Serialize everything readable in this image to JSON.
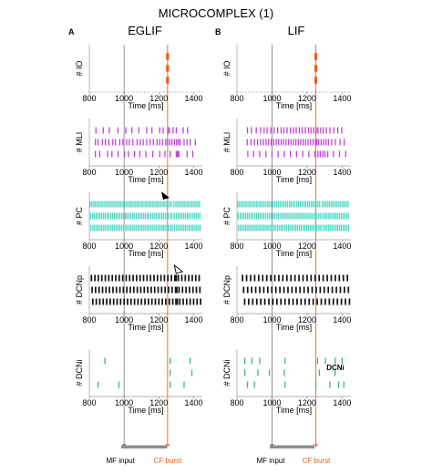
{
  "figure": {
    "title": "MICROCOMPLEX (1)",
    "mf_label": "MF input",
    "cf_label": "CF burst",
    "dcni_note": "DCNi"
  },
  "colors": {
    "IO": "#e8601c",
    "MLI": "#c040d8",
    "PC": "#4fd6c4",
    "DCNp": "#111111",
    "DCNi": "#3cb371",
    "cf_line": "#f07a50",
    "mf_line": "#7a7a7a",
    "stim_bar": "#8c8c8c"
  },
  "chart_data": [
    {
      "type": "scatter",
      "panel_letter": "A",
      "column_title": "EGLIF",
      "xlim": [
        800,
        1450
      ],
      "xticks": [
        800,
        1000,
        1200,
        1400
      ],
      "mf_onset": 1000,
      "cf_time": 1250,
      "rows": [
        {
          "population": "IO",
          "ylabel": "# IO",
          "xlabel": "Time [ms]",
          "trains": [
            [
              1250
            ],
            [
              1250
            ],
            [
              1250
            ]
          ]
        },
        {
          "population": "MLI",
          "ylabel": "# MLI",
          "xlabel": "Time [ms]",
          "trains": [
            [
              838,
              880,
              915,
              965,
              1010,
              1045,
              1085,
              1130,
              1160,
              1205,
              1225,
              1252,
              1260,
              1282,
              1300,
              1340,
              1365
            ],
            [
              835,
              850,
              875,
              893,
              912,
              935,
              950,
              975,
              993,
              1015,
              1030,
              1050,
              1075,
              1093,
              1110,
              1130,
              1150,
              1168,
              1190,
              1205,
              1222,
              1240,
              1250,
              1262,
              1275,
              1290,
              1302,
              1312,
              1322,
              1345,
              1362,
              1380,
              1410
            ],
            [
              835,
              860,
              905,
              930,
              965,
              1003,
              1025,
              1060,
              1090,
              1125,
              1165,
              1205,
              1235,
              1265,
              1300,
              1305,
              1310,
              1315,
              1362,
              1395
            ]
          ]
        },
        {
          "population": "PC",
          "ylabel": "# PC",
          "xlabel": "Time [ms]",
          "marker": "filled",
          "marker_time": 1240,
          "trains": [
            [
              805,
              815,
              826,
              836,
              847,
              857,
              868,
              878,
              889,
              899,
              910,
              920,
              931,
              941,
              952,
              962,
              973,
              983,
              994,
              1004,
              1015,
              1025,
              1036,
              1046,
              1057,
              1067,
              1078,
              1088,
              1099,
              1109,
              1120,
              1130,
              1141,
              1151,
              1162,
              1172,
              1183,
              1193,
              1204,
              1214,
              1225,
              1235,
              1246,
              1252,
              1262,
              1272,
              1287,
              1298,
              1308,
              1319,
              1329,
              1340,
              1350,
              1361,
              1371,
              1382,
              1392,
              1403,
              1413,
              1424,
              1434
            ],
            [
              807,
              818,
              828,
              839,
              849,
              860,
              870,
              881,
              891,
              902,
              912,
              923,
              933,
              944,
              954,
              965,
              975,
              986,
              996,
              1007,
              1017,
              1028,
              1038,
              1049,
              1059,
              1070,
              1080,
              1091,
              1101,
              1112,
              1122,
              1133,
              1143,
              1154,
              1164,
              1175,
              1185,
              1196,
              1206,
              1217,
              1227,
              1238,
              1248,
              1254,
              1266,
              1276,
              1289,
              1300,
              1310,
              1321,
              1331,
              1342,
              1352,
              1363,
              1373,
              1384,
              1394,
              1405,
              1415,
              1426,
              1436
            ],
            [
              809,
              820,
              830,
              841,
              851,
              862,
              872,
              883,
              893,
              904,
              914,
              925,
              935,
              946,
              956,
              967,
              977,
              988,
              998,
              1009,
              1019,
              1030,
              1040,
              1051,
              1061,
              1072,
              1082,
              1093,
              1103,
              1114,
              1124,
              1135,
              1145,
              1156,
              1166,
              1177,
              1187,
              1198,
              1208,
              1219,
              1229,
              1240,
              1250,
              1256,
              1268,
              1278,
              1291,
              1302,
              1312,
              1323,
              1333,
              1344,
              1354,
              1365,
              1375,
              1386,
              1396,
              1407,
              1417,
              1428,
              1438
            ]
          ]
        },
        {
          "population": "DCNp",
          "ylabel": "# DCNp",
          "xlabel": "Time [ms]",
          "marker": "open",
          "marker_time": 1310,
          "trains": [
            [
              812,
              832,
              852,
              872,
              892,
              912,
              932,
              952,
              972,
              992,
              1012,
              1032,
              1052,
              1072,
              1092,
              1112,
              1132,
              1152,
              1172,
              1192,
              1212,
              1232,
              1252,
              1272,
              1292,
              1300,
              1312,
              1332,
              1352,
              1372,
              1392,
              1412,
              1432
            ],
            [
              816,
              836,
              856,
              876,
              896,
              916,
              936,
              956,
              976,
              996,
              1016,
              1036,
              1056,
              1076,
              1096,
              1116,
              1136,
              1156,
              1176,
              1196,
              1216,
              1236,
              1256,
              1276,
              1296,
              1303,
              1316,
              1336,
              1356,
              1376,
              1396,
              1416,
              1436
            ],
            [
              820,
              840,
              860,
              880,
              900,
              920,
              940,
              960,
              980,
              1000,
              1020,
              1040,
              1060,
              1080,
              1100,
              1120,
              1140,
              1160,
              1180,
              1200,
              1220,
              1240,
              1260,
              1280,
              1298,
              1306,
              1320,
              1340,
              1360,
              1380,
              1400,
              1420,
              1440
            ]
          ]
        },
        {
          "population": "DCNi",
          "ylabel": "# DCNi",
          "xlabel": "Time [ms]",
          "trains": [
            [
              890,
              1265,
              1380
            ],
            [
              1265,
              1390
            ],
            [
              850,
              970,
              1265,
              1345
            ]
          ]
        }
      ]
    },
    {
      "type": "scatter",
      "panel_letter": "B",
      "column_title": "LIF",
      "xlim": [
        800,
        1450
      ],
      "xticks": [
        800,
        1000,
        1200,
        1400
      ],
      "mf_onset": 1000,
      "cf_time": 1250,
      "rows": [
        {
          "population": "IO",
          "ylabel": "# IO",
          "xlabel": "Time [ms]",
          "trains": [
            [
              1250
            ],
            [
              1250
            ],
            [
              1250
            ]
          ]
        },
        {
          "population": "MLI",
          "ylabel": "# MLI",
          "xlabel": "Time [ms]",
          "trains": [
            [
              860,
              882,
              910,
              935,
              955,
              972,
              993,
              1012,
              1032,
              1052,
              1068,
              1086,
              1105,
              1122,
              1138,
              1156,
              1172,
              1190,
              1208,
              1222,
              1238,
              1252,
              1262,
              1278,
              1292,
              1310,
              1330,
              1352,
              1375,
              1398
            ],
            [
              858,
              880,
              900,
              918,
              935,
              950,
              966,
              980,
              995,
              1010,
              1024,
              1038,
              1052,
              1066,
              1080,
              1094,
              1108,
              1122,
              1136,
              1150,
              1164,
              1178,
              1192,
              1206,
              1220,
              1234,
              1248,
              1256,
              1266,
              1280,
              1294,
              1308,
              1322,
              1340,
              1362,
              1388,
              1412
            ],
            [
              862,
              895,
              930,
              965,
              1000,
              1035,
              1070,
              1105,
              1140,
              1175,
              1210,
              1245,
              1262,
              1275,
              1290,
              1302,
              1318,
              1350,
              1385,
              1420
            ]
          ]
        },
        {
          "population": "PC",
          "ylabel": "# PC",
          "xlabel": "Time [ms]",
          "trains": [
            [
              805,
              815,
              826,
              836,
              847,
              857,
              868,
              878,
              889,
              899,
              910,
              920,
              931,
              941,
              952,
              962,
              973,
              983,
              994,
              1004,
              1015,
              1025,
              1036,
              1046,
              1057,
              1067,
              1078,
              1088,
              1099,
              1109,
              1120,
              1130,
              1141,
              1151,
              1162,
              1172,
              1183,
              1193,
              1204,
              1214,
              1225,
              1235,
              1246,
              1252,
              1262,
              1272,
              1287,
              1298,
              1308,
              1319,
              1329,
              1340,
              1350,
              1361,
              1371,
              1382,
              1392,
              1403,
              1413,
              1424,
              1434
            ],
            [
              807,
              818,
              828,
              839,
              849,
              860,
              870,
              881,
              891,
              902,
              912,
              923,
              933,
              944,
              954,
              965,
              975,
              986,
              996,
              1007,
              1017,
              1028,
              1038,
              1049,
              1059,
              1070,
              1080,
              1091,
              1101,
              1112,
              1122,
              1133,
              1143,
              1154,
              1164,
              1175,
              1185,
              1196,
              1206,
              1217,
              1227,
              1238,
              1248,
              1254,
              1266,
              1276,
              1289,
              1300,
              1310,
              1321,
              1331,
              1342,
              1352,
              1363,
              1373,
              1384,
              1394,
              1405,
              1415,
              1426,
              1436
            ],
            [
              809,
              820,
              830,
              841,
              851,
              862,
              872,
              883,
              893,
              904,
              914,
              925,
              935,
              946,
              956,
              967,
              977,
              988,
              998,
              1009,
              1019,
              1030,
              1040,
              1051,
              1061,
              1072,
              1082,
              1093,
              1103,
              1114,
              1124,
              1135,
              1145,
              1156,
              1166,
              1177,
              1187,
              1198,
              1208,
              1219,
              1229,
              1240,
              1250,
              1256,
              1268,
              1278,
              1291,
              1302,
              1312,
              1323,
              1333,
              1344,
              1354,
              1365,
              1375,
              1386,
              1396,
              1407,
              1417,
              1428,
              1438
            ]
          ]
        },
        {
          "population": "DCNp",
          "ylabel": "# DCNp",
          "xlabel": "Time [ms]",
          "trains": [
            [
              832,
              855,
              878,
              901,
              924,
              947,
              970,
              993,
              1016,
              1039,
              1062,
              1085,
              1108,
              1131,
              1154,
              1177,
              1200,
              1223,
              1246,
              1269,
              1292,
              1315,
              1338,
              1361,
              1384,
              1407,
              1430
            ],
            [
              838,
              861,
              884,
              907,
              930,
              953,
              976,
              999,
              1022,
              1045,
              1068,
              1091,
              1114,
              1137,
              1160,
              1183,
              1206,
              1229,
              1252,
              1275,
              1298,
              1321,
              1344,
              1367,
              1390,
              1413,
              1436
            ],
            [
              844,
              867,
              890,
              913,
              936,
              959,
              982,
              1005,
              1028,
              1051,
              1074,
              1097,
              1120,
              1143,
              1166,
              1189,
              1212,
              1235,
              1258,
              1281,
              1304,
              1327,
              1350,
              1373,
              1396,
              1419,
              1442
            ]
          ]
        },
        {
          "population": "DCNi",
          "ylabel": "# DCNi",
          "xlabel": "Time [ms]",
          "trains": [
            [
              845,
              885,
              930,
              1075,
              1260,
              1305,
              1360,
              1400
            ],
            [
              845,
              920,
              985,
              1070,
              1270,
              1360
            ],
            [
              860,
              900,
              1075,
              1250,
              1330,
              1380,
              1410
            ]
          ]
        }
      ]
    }
  ]
}
